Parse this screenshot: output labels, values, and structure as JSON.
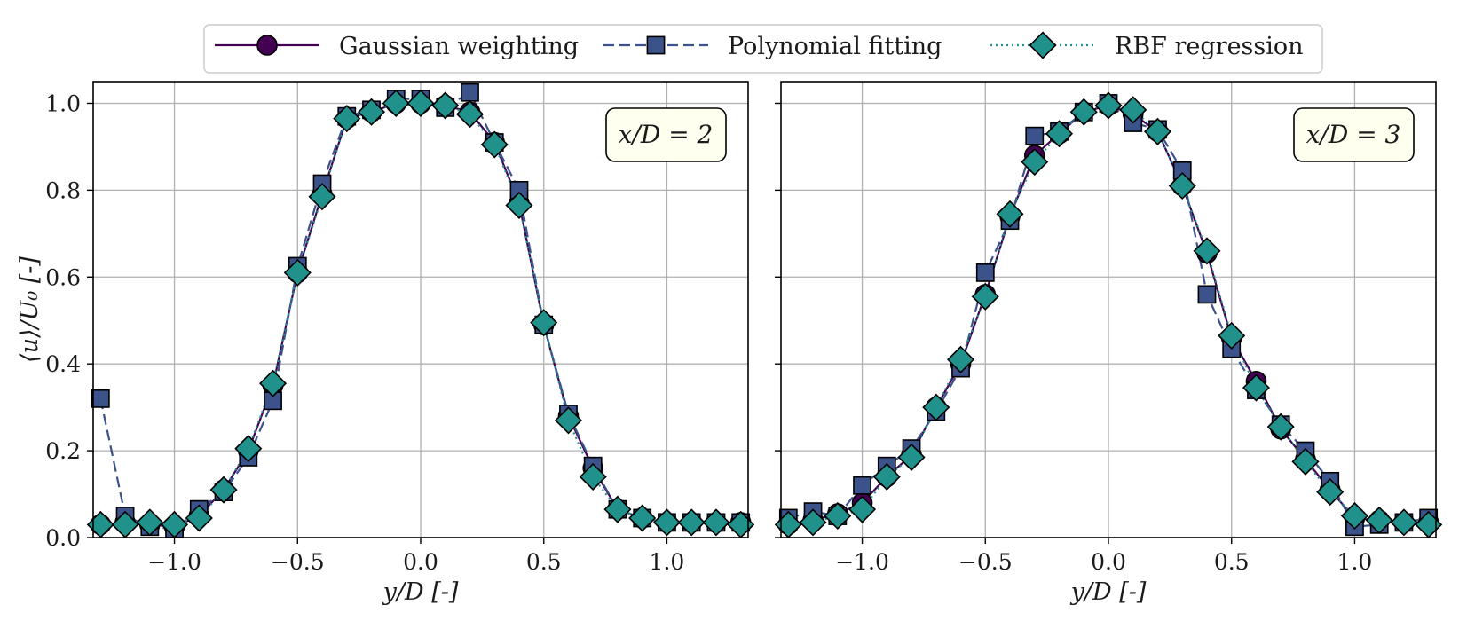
{
  "legend": [
    {
      "name": "Gaussian weighting",
      "color": "#440154",
      "marker": "circle",
      "dash": "solid"
    },
    {
      "name": "Polynomial fitting",
      "color": "#3b528b",
      "marker": "square",
      "dash": "dashed"
    },
    {
      "name": "RBF regression",
      "color": "#21918c",
      "marker": "diamond",
      "dash": "dotted"
    }
  ],
  "chart_data": [
    {
      "type": "line",
      "annotation": "x/D = 2",
      "xlabel": "y/D [-]",
      "ylabel": "⟨u⟩/U₀ [-]",
      "xlim": [
        -1.33,
        1.33
      ],
      "ylim": [
        0.0,
        1.05
      ],
      "xticks": [
        -1.0,
        -0.5,
        0.0,
        0.5,
        1.0
      ],
      "xtick_labels": [
        "−1.0",
        "−0.5",
        "0.0",
        "0.5",
        "1.0"
      ],
      "yticks": [
        0.0,
        0.2,
        0.4,
        0.6,
        0.8,
        1.0
      ],
      "ytick_labels": [
        "0.0",
        "0.2",
        "0.4",
        "0.6",
        "0.8",
        "1.0"
      ],
      "grid": true,
      "x": [
        -1.3,
        -1.2,
        -1.1,
        -1.0,
        -0.9,
        -0.8,
        -0.7,
        -0.6,
        -0.5,
        -0.4,
        -0.3,
        -0.2,
        -0.1,
        0.0,
        0.1,
        0.2,
        0.3,
        0.4,
        0.5,
        0.6,
        0.7,
        0.8,
        0.9,
        1.0,
        1.1,
        1.2,
        1.3
      ],
      "series": [
        {
          "name": "Gaussian weighting",
          "values": [
            0.03,
            0.035,
            0.03,
            0.025,
            0.05,
            0.11,
            0.2,
            0.35,
            0.61,
            0.79,
            0.965,
            0.98,
            1.0,
            1.0,
            0.995,
            0.98,
            0.91,
            0.77,
            0.49,
            0.28,
            0.16,
            0.065,
            0.045,
            0.035,
            0.035,
            0.035,
            0.035
          ]
        },
        {
          "name": "Polynomial fitting",
          "values": [
            0.32,
            0.05,
            0.025,
            0.02,
            0.065,
            0.105,
            0.185,
            0.315,
            0.625,
            0.815,
            0.97,
            0.985,
            1.01,
            1.01,
            0.99,
            1.025,
            0.91,
            0.8,
            0.49,
            0.285,
            0.165,
            0.065,
            0.045,
            0.035,
            0.035,
            0.035,
            0.035
          ]
        },
        {
          "name": "RBF regression",
          "values": [
            0.03,
            0.03,
            0.035,
            0.03,
            0.045,
            0.11,
            0.205,
            0.355,
            0.61,
            0.785,
            0.965,
            0.98,
            1.0,
            1.0,
            0.995,
            0.975,
            0.905,
            0.765,
            0.495,
            0.27,
            0.14,
            0.065,
            0.045,
            0.035,
            0.035,
            0.035,
            0.03
          ]
        }
      ]
    },
    {
      "type": "line",
      "annotation": "x/D = 3",
      "xlabel": "y/D [-]",
      "ylabel": "",
      "xlim": [
        -1.33,
        1.33
      ],
      "ylim": [
        0.0,
        1.05
      ],
      "xticks": [
        -1.0,
        -0.5,
        0.0,
        0.5,
        1.0
      ],
      "xtick_labels": [
        "−1.0",
        "−0.5",
        "0.0",
        "0.5",
        "1.0"
      ],
      "yticks": [
        0.0,
        0.2,
        0.4,
        0.6,
        0.8,
        1.0
      ],
      "ytick_labels": [],
      "grid": true,
      "x": [
        -1.3,
        -1.2,
        -1.1,
        -1.0,
        -0.9,
        -0.8,
        -0.7,
        -0.6,
        -0.5,
        -0.4,
        -0.3,
        -0.2,
        -0.1,
        0.0,
        0.1,
        0.2,
        0.3,
        0.4,
        0.5,
        0.6,
        0.7,
        0.8,
        0.9,
        1.0,
        1.1,
        1.2,
        1.3
      ],
      "series": [
        {
          "name": "Gaussian weighting",
          "values": [
            0.03,
            0.04,
            0.055,
            0.08,
            0.14,
            0.19,
            0.3,
            0.4,
            0.56,
            0.74,
            0.88,
            0.93,
            0.98,
            0.995,
            0.975,
            0.935,
            0.81,
            0.655,
            0.46,
            0.36,
            0.25,
            0.18,
            0.11,
            0.045,
            0.04,
            0.035,
            0.035
          ]
        },
        {
          "name": "Polynomial fitting",
          "values": [
            0.045,
            0.06,
            0.05,
            0.12,
            0.165,
            0.205,
            0.29,
            0.39,
            0.61,
            0.73,
            0.925,
            0.935,
            0.98,
            1.0,
            0.955,
            0.94,
            0.845,
            0.56,
            0.435,
            0.34,
            0.26,
            0.2,
            0.13,
            0.025,
            0.03,
            0.035,
            0.045
          ]
        },
        {
          "name": "RBF regression",
          "values": [
            0.03,
            0.035,
            0.05,
            0.065,
            0.14,
            0.185,
            0.3,
            0.41,
            0.555,
            0.745,
            0.865,
            0.93,
            0.98,
            0.995,
            0.985,
            0.935,
            0.81,
            0.66,
            0.465,
            0.345,
            0.255,
            0.175,
            0.105,
            0.05,
            0.04,
            0.035,
            0.03
          ]
        }
      ]
    }
  ]
}
